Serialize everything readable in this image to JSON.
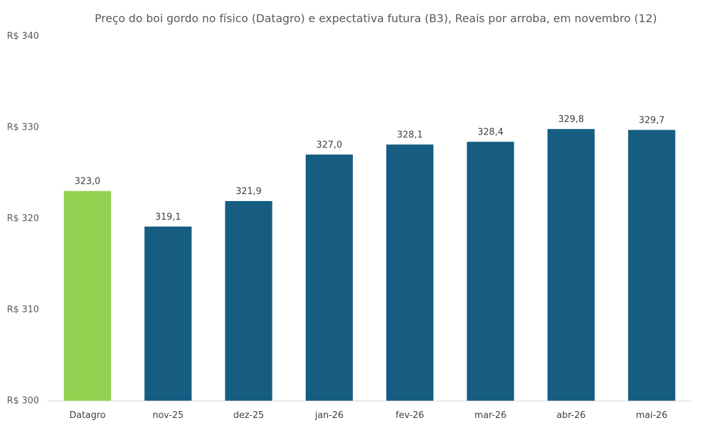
{
  "chart_data": {
    "type": "bar",
    "title": "Preço do boi gordo no físico (Datagro)  e expectativa futura (B3), Reais por arroba, em novembro (12)",
    "categories": [
      "Datagro",
      "nov-25",
      "dez-25",
      "jan-26",
      "fev-26",
      "mar-26",
      "abr-26",
      "mai-26"
    ],
    "values": [
      323.0,
      319.1,
      321.9,
      327.0,
      328.1,
      328.4,
      329.8,
      329.7
    ],
    "value_labels": [
      "323,0",
      "319,1",
      "321,9",
      "327,0",
      "328,1",
      "328,4",
      "329,8",
      "329,7"
    ],
    "bar_colors": [
      "#92d050",
      "#175d81",
      "#175d81",
      "#175d81",
      "#175d81",
      "#175d81",
      "#175d81",
      "#175d81"
    ],
    "ylim": [
      300,
      340
    ],
    "y_ticks": [
      300,
      310,
      320,
      330,
      340
    ],
    "y_tick_labels": [
      "R$ 300",
      "R$ 310",
      "R$ 320",
      "R$ 330",
      "R$ 340"
    ],
    "xlabel": "",
    "ylabel": "",
    "grid": false,
    "legend": "none"
  }
}
